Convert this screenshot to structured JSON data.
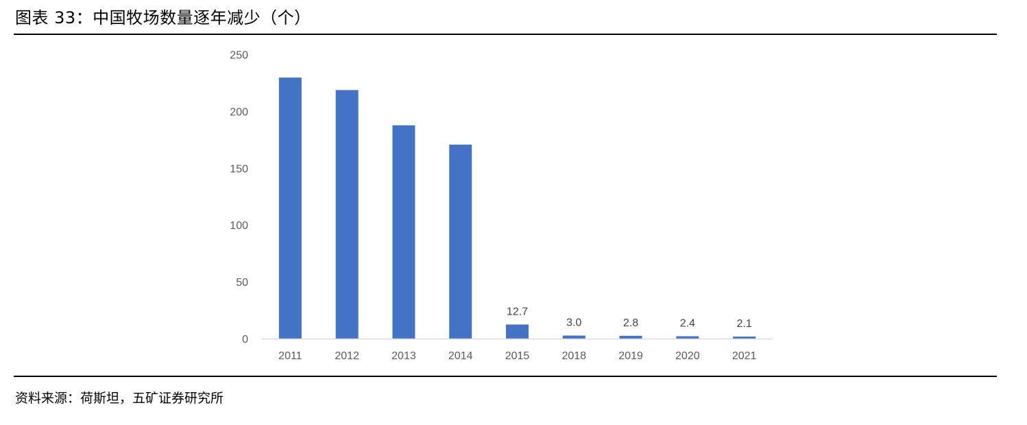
{
  "header": {
    "title": "图表 33：中国牧场数量逐年减少（个）"
  },
  "footer": {
    "source": "资料来源：荷斯坦，五矿证券研究所"
  },
  "colors": {
    "bar": "#4472C4",
    "axis": "#d9d9d9",
    "tick_text": "#595959",
    "label_text": "#404040",
    "rule": "#000000"
  },
  "chart_data": {
    "type": "bar",
    "title": "",
    "xlabel": "",
    "ylabel": "",
    "categories": [
      "2011",
      "2012",
      "2013",
      "2014",
      "2015",
      "2018",
      "2019",
      "2020",
      "2021"
    ],
    "values": [
      230,
      219,
      188,
      171,
      12.7,
      3.0,
      2.8,
      2.4,
      2.1
    ],
    "data_labels": [
      "",
      "",
      "",
      "",
      "12.7",
      "3.0",
      "2.8",
      "2.4",
      "2.1"
    ],
    "ylim": [
      0,
      250
    ],
    "yticks": [
      "0",
      "50",
      "100",
      "150",
      "200",
      "250"
    ],
    "grid": false,
    "legend": "none"
  }
}
